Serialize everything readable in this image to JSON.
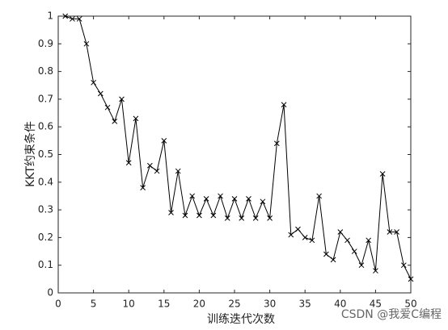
{
  "chart_data": {
    "type": "line",
    "xlabel": "训练迭代次数",
    "ylabel": "KKT约束条件",
    "annotation": "CSDN @我爱C编程",
    "x": [
      1,
      2,
      3,
      4,
      5,
      6,
      7,
      8,
      9,
      10,
      11,
      12,
      13,
      14,
      15,
      16,
      17,
      18,
      19,
      20,
      21,
      22,
      23,
      24,
      25,
      26,
      27,
      28,
      29,
      30,
      31,
      32,
      33,
      34,
      35,
      36,
      37,
      38,
      39,
      40,
      41,
      42,
      43,
      44,
      45,
      46,
      47,
      48,
      49,
      50
    ],
    "series": [
      {
        "color": "#000000",
        "marker": "x",
        "values": [
          1.0,
          0.99,
          0.99,
          0.9,
          0.76,
          0.72,
          0.67,
          0.62,
          0.7,
          0.47,
          0.63,
          0.38,
          0.46,
          0.44,
          0.55,
          0.29,
          0.44,
          0.28,
          0.35,
          0.28,
          0.34,
          0.28,
          0.35,
          0.27,
          0.34,
          0.27,
          0.34,
          0.27,
          0.33,
          0.27,
          0.54,
          0.68,
          0.21,
          0.23,
          0.2,
          0.19,
          0.35,
          0.14,
          0.12,
          0.22,
          0.19,
          0.15,
          0.1,
          0.19,
          0.08,
          0.43,
          0.22,
          0.22,
          0.1,
          0.05
        ]
      }
    ],
    "xlim": [
      0,
      50
    ],
    "xticks": [
      0,
      5,
      10,
      15,
      20,
      25,
      30,
      35,
      40,
      45,
      50
    ],
    "ylim": [
      0,
      1
    ],
    "yticks": [
      0,
      0.1,
      0.2,
      0.3,
      0.4,
      0.5,
      0.6,
      0.7,
      0.8,
      0.9,
      1
    ]
  }
}
